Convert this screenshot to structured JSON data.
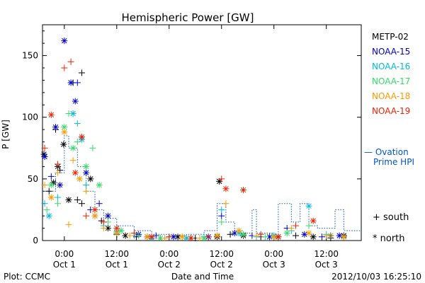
{
  "chart_data": {
    "type": "scatter",
    "title": "Hemispheric Power [GW]",
    "ylabel": "P [GW]",
    "xlabel": "Date and Time",
    "ylim": [
      0,
      175
    ],
    "xlim": [
      "2012-09-30 19:00",
      "2012-10-03 20:00"
    ],
    "yticks": [
      0,
      50,
      100,
      150
    ],
    "xticks": [
      {
        "t": "2012-10-01 00:00",
        "time": "0:00",
        "day": "Oct 1"
      },
      {
        "t": "2012-10-01 12:00",
        "time": "12:00",
        "day": "Oct 1"
      },
      {
        "t": "2012-10-02 00:00",
        "time": "0:00",
        "day": "Oct 2"
      },
      {
        "t": "2012-10-02 12:00",
        "time": "12:00",
        "day": "Oct 2"
      },
      {
        "t": "2012-10-03 00:00",
        "time": "0:00",
        "day": "Oct 3"
      },
      {
        "t": "2012-10-03 12:00",
        "time": "12:00",
        "day": "Oct 3"
      }
    ],
    "series": [
      {
        "name": "METP-02",
        "color": "#000000",
        "points": [
          [
            "2012-09-30 19:20",
            70,
            "n"
          ],
          [
            "2012-09-30 20:30",
            40,
            "s"
          ],
          [
            "2012-09-30 21:30",
            47,
            "n"
          ],
          [
            "2012-09-30 22:00",
            90,
            "s"
          ],
          [
            "2012-09-30 22:30",
            60,
            "n"
          ],
          [
            "2012-09-30 23:00",
            57,
            "s"
          ],
          [
            "2012-09-30 23:50",
            78,
            "n"
          ],
          [
            "2012-10-01 01:00",
            33,
            "n"
          ],
          [
            "2012-10-01 02:00",
            128,
            "s"
          ],
          [
            "2012-10-01 03:00",
            33,
            "s"
          ],
          [
            "2012-10-01 04:00",
            136,
            "s"
          ],
          [
            "2012-10-01 04:00",
            30,
            "s"
          ],
          [
            "2012-10-01 06:00",
            50,
            "n"
          ],
          [
            "2012-10-01 08:30",
            16,
            "s"
          ],
          [
            "2012-10-01 10:00",
            10,
            "n"
          ],
          [
            "2012-10-01 12:00",
            5,
            "s"
          ],
          [
            "2012-10-01 14:00",
            4,
            "n"
          ],
          [
            "2012-10-01 16:30",
            3,
            "s"
          ],
          [
            "2012-10-01 19:00",
            3,
            "n"
          ],
          [
            "2012-10-01 22:00",
            2,
            "s"
          ],
          [
            "2012-10-02 02:00",
            3,
            "n"
          ],
          [
            "2012-10-02 06:00",
            2,
            "s"
          ],
          [
            "2012-10-02 11:00",
            3,
            "n"
          ],
          [
            "2012-10-02 11:30",
            48,
            "n"
          ],
          [
            "2012-10-02 14:00",
            5,
            "s"
          ],
          [
            "2012-10-02 17:00",
            4,
            "n"
          ],
          [
            "2012-10-02 21:00",
            3,
            "s"
          ],
          [
            "2012-10-03 01:00",
            3,
            "n"
          ],
          [
            "2012-10-03 05:00",
            4,
            "s"
          ],
          [
            "2012-10-03 09:00",
            3,
            "n"
          ],
          [
            "2012-10-03 13:00",
            2,
            "s"
          ],
          [
            "2012-10-03 16:00",
            4,
            "n"
          ]
        ]
      },
      {
        "name": "NOAA-15",
        "color": "#0000cc",
        "points": [
          [
            "2012-09-30 19:30",
            68,
            "n"
          ],
          [
            "2012-09-30 21:00",
            52,
            "s"
          ],
          [
            "2012-09-30 22:00",
            92,
            "n"
          ],
          [
            "2012-09-30 23:00",
            45,
            "n"
          ],
          [
            "2012-10-01 00:00",
            162,
            "n"
          ],
          [
            "2012-10-01 01:30",
            128,
            "n"
          ],
          [
            "2012-10-01 02:30",
            113,
            "n"
          ],
          [
            "2012-10-01 03:00",
            128,
            "s"
          ],
          [
            "2012-10-01 05:00",
            55,
            "n"
          ],
          [
            "2012-10-01 06:00",
            25,
            "s"
          ],
          [
            "2012-10-01 08:00",
            30,
            "s"
          ],
          [
            "2012-10-01 10:00",
            20,
            "n"
          ],
          [
            "2012-10-01 13:00",
            8,
            "s"
          ],
          [
            "2012-10-01 17:00",
            5,
            "n"
          ],
          [
            "2012-10-01 21:00",
            4,
            "s"
          ],
          [
            "2012-10-02 01:00",
            3,
            "n"
          ],
          [
            "2012-10-02 05:00",
            2,
            "s"
          ],
          [
            "2012-10-02 09:00",
            3,
            "n"
          ],
          [
            "2012-10-02 12:00",
            20,
            "s"
          ],
          [
            "2012-10-02 15:00",
            6,
            "n"
          ],
          [
            "2012-10-02 19:00",
            4,
            "s"
          ],
          [
            "2012-10-02 23:00",
            3,
            "n"
          ],
          [
            "2012-10-03 03:00",
            10,
            "s"
          ],
          [
            "2012-10-03 07:00",
            5,
            "n"
          ],
          [
            "2012-10-03 11:00",
            3,
            "s"
          ],
          [
            "2012-10-03 15:00",
            4,
            "n"
          ]
        ]
      },
      {
        "name": "NOAA-16",
        "color": "#00bbdd",
        "points": [
          [
            "2012-09-30 19:30",
            30,
            "s"
          ],
          [
            "2012-09-30 20:30",
            20,
            "n"
          ],
          [
            "2012-09-30 22:30",
            35,
            "s"
          ],
          [
            "2012-10-01 02:00",
            103,
            "n"
          ],
          [
            "2012-10-01 03:00",
            95,
            "s"
          ],
          [
            "2012-10-01 04:00",
            82,
            "n"
          ],
          [
            "2012-10-01 05:00",
            45,
            "s"
          ],
          [
            "2012-10-01 07:00",
            20,
            "n"
          ],
          [
            "2012-10-01 09:00",
            12,
            "s"
          ],
          [
            "2012-10-01 12:00",
            7,
            "n"
          ],
          [
            "2012-10-01 16:00",
            4,
            "s"
          ],
          [
            "2012-10-01 20:00",
            2,
            "n"
          ],
          [
            "2012-10-02 00:00",
            3,
            "s"
          ],
          [
            "2012-10-02 04:00",
            2,
            "n"
          ],
          [
            "2012-10-02 08:00",
            3,
            "s"
          ],
          [
            "2012-10-02 12:00",
            25,
            "s"
          ],
          [
            "2012-10-02 16:00",
            6,
            "n"
          ],
          [
            "2012-10-02 20:00",
            3,
            "s"
          ],
          [
            "2012-10-03 00:00",
            4,
            "n"
          ],
          [
            "2012-10-03 04:00",
            8,
            "s"
          ],
          [
            "2012-10-03 08:00",
            28,
            "n"
          ],
          [
            "2012-10-03 12:00",
            5,
            "s"
          ],
          [
            "2012-10-03 16:00",
            3,
            "n"
          ]
        ]
      },
      {
        "name": "NOAA-17",
        "color": "#33dd66",
        "points": [
          [
            "2012-09-30 20:00",
            25,
            "s"
          ],
          [
            "2012-09-30 21:00",
            45,
            "n"
          ],
          [
            "2012-09-30 22:30",
            30,
            "s"
          ],
          [
            "2012-10-01 00:00",
            92,
            "n"
          ],
          [
            "2012-10-01 01:00",
            103,
            "s"
          ],
          [
            "2012-10-01 02:00",
            75,
            "n"
          ],
          [
            "2012-10-01 03:00",
            80,
            "s"
          ],
          [
            "2012-10-01 05:00",
            60,
            "n"
          ],
          [
            "2012-10-01 06:30",
            75,
            "s"
          ],
          [
            "2012-10-01 08:00",
            45,
            "n"
          ],
          [
            "2012-10-01 10:00",
            15,
            "s"
          ],
          [
            "2012-10-01 13:00",
            8,
            "n"
          ],
          [
            "2012-10-01 17:00",
            4,
            "s"
          ],
          [
            "2012-10-01 22:00",
            2,
            "n"
          ],
          [
            "2012-10-02 03:00",
            3,
            "s"
          ],
          [
            "2012-10-02 08:00",
            2,
            "n"
          ],
          [
            "2012-10-02 12:00",
            15,
            "s"
          ],
          [
            "2012-10-02 17:00",
            5,
            "n"
          ],
          [
            "2012-10-02 22:00",
            3,
            "s"
          ],
          [
            "2012-10-03 03:00",
            6,
            "n"
          ],
          [
            "2012-10-03 08:00",
            12,
            "s"
          ],
          [
            "2012-10-03 13:00",
            4,
            "n"
          ]
        ]
      },
      {
        "name": "NOAA-18",
        "color": "#ff9900",
        "points": [
          [
            "2012-09-30 19:30",
            45,
            "s"
          ],
          [
            "2012-09-30 21:00",
            35,
            "n"
          ],
          [
            "2012-09-30 22:30",
            55,
            "s"
          ],
          [
            "2012-10-01 00:00",
            88,
            "n"
          ],
          [
            "2012-10-01 01:00",
            13,
            "s"
          ],
          [
            "2012-10-01 02:00",
            65,
            "s"
          ],
          [
            "2012-10-01 03:30",
            50,
            "n"
          ],
          [
            "2012-10-01 05:00",
            40,
            "s"
          ],
          [
            "2012-10-01 07:00",
            20,
            "n"
          ],
          [
            "2012-10-01 09:00",
            10,
            "s"
          ],
          [
            "2012-10-01 12:00",
            6,
            "n"
          ],
          [
            "2012-10-01 15:00",
            4,
            "s"
          ],
          [
            "2012-10-01 19:00",
            3,
            "n"
          ],
          [
            "2012-10-01 23:00",
            2,
            "s"
          ],
          [
            "2012-10-02 03:00",
            3,
            "n"
          ],
          [
            "2012-10-02 07:00",
            2,
            "s"
          ],
          [
            "2012-10-02 11:00",
            4,
            "n"
          ],
          [
            "2012-10-02 13:00",
            30,
            "s"
          ],
          [
            "2012-10-02 16:00",
            8,
            "n"
          ],
          [
            "2012-10-02 20:00",
            4,
            "s"
          ],
          [
            "2012-10-03 00:00",
            3,
            "n"
          ],
          [
            "2012-10-03 04:00",
            10,
            "s"
          ],
          [
            "2012-10-03 08:00",
            6,
            "n"
          ],
          [
            "2012-10-03 12:00",
            4,
            "s"
          ],
          [
            "2012-10-03 16:00",
            3,
            "n"
          ]
        ]
      },
      {
        "name": "NOAA-19",
        "color": "#ee2200",
        "points": [
          [
            "2012-09-30 19:30",
            75,
            "s"
          ],
          [
            "2012-09-30 21:00",
            102,
            "n"
          ],
          [
            "2012-09-30 22:30",
            62,
            "s"
          ],
          [
            "2012-10-01 00:00",
            140,
            "s"
          ],
          [
            "2012-10-01 01:30",
            145,
            "s"
          ],
          [
            "2012-10-01 02:30",
            55,
            "n"
          ],
          [
            "2012-10-01 04:00",
            84,
            "n"
          ],
          [
            "2012-10-01 05:00",
            20,
            "s"
          ],
          [
            "2012-10-01 07:00",
            25,
            "n"
          ],
          [
            "2012-10-01 09:00",
            15,
            "s"
          ],
          [
            "2012-10-01 12:00",
            10,
            "n"
          ],
          [
            "2012-10-01 16:00",
            6,
            "s"
          ],
          [
            "2012-10-01 20:00",
            3,
            "n"
          ],
          [
            "2012-10-02 00:00",
            3,
            "s"
          ],
          [
            "2012-10-02 05:00",
            2,
            "n"
          ],
          [
            "2012-10-02 09:00",
            3,
            "s"
          ],
          [
            "2012-10-02 12:00",
            50,
            "s"
          ],
          [
            "2012-10-02 13:00",
            42,
            "n"
          ],
          [
            "2012-10-02 17:00",
            41,
            "n"
          ],
          [
            "2012-10-02 21:00",
            5,
            "s"
          ],
          [
            "2012-10-03 01:00",
            3,
            "n"
          ],
          [
            "2012-10-03 05:00",
            12,
            "s"
          ],
          [
            "2012-10-03 09:00",
            16,
            "n"
          ],
          [
            "2012-10-03 13:00",
            4,
            "s"
          ]
        ]
      }
    ],
    "ovation": {
      "name": "Ovation Prime HPI",
      "label_line1": "— Ovation",
      "label_line2": "Prime HPI",
      "color": "#0055cc",
      "steps": [
        [
          "2012-09-30 19:00",
          40
        ],
        [
          "2012-09-30 22:00",
          55
        ],
        [
          "2012-10-01 00:00",
          85
        ],
        [
          "2012-10-01 01:00",
          75
        ],
        [
          "2012-10-01 03:00",
          60
        ],
        [
          "2012-10-01 05:00",
          40
        ],
        [
          "2012-10-01 07:00",
          25
        ],
        [
          "2012-10-01 09:00",
          18
        ],
        [
          "2012-10-01 12:00",
          12
        ],
        [
          "2012-10-01 16:00",
          8
        ],
        [
          "2012-10-01 20:00",
          5
        ],
        [
          "2012-10-02 00:00",
          4
        ],
        [
          "2012-10-02 04:00",
          5
        ],
        [
          "2012-10-02 08:00",
          8
        ],
        [
          "2012-10-02 11:00",
          30
        ],
        [
          "2012-10-02 13:00",
          15
        ],
        [
          "2012-10-02 15:00",
          8
        ],
        [
          "2012-10-02 17:00",
          6
        ],
        [
          "2012-10-02 19:00",
          25
        ],
        [
          "2012-10-02 20:00",
          6
        ],
        [
          "2012-10-03 00:00",
          5
        ],
        [
          "2012-10-03 01:00",
          30
        ],
        [
          "2012-10-03 04:00",
          15
        ],
        [
          "2012-10-03 06:00",
          30
        ],
        [
          "2012-10-03 08:00",
          12
        ],
        [
          "2012-10-03 10:00",
          10
        ],
        [
          "2012-10-03 14:00",
          25
        ],
        [
          "2012-10-03 16:00",
          8
        ],
        [
          "2012-10-03 20:00",
          8
        ]
      ]
    },
    "markers_legend": [
      {
        "symbol": "+",
        "label": "south"
      },
      {
        "symbol": "*",
        "label": "north"
      }
    ],
    "footer": {
      "left": "Plot: CCMC",
      "right": "2012/10/03 16:25:10"
    }
  }
}
